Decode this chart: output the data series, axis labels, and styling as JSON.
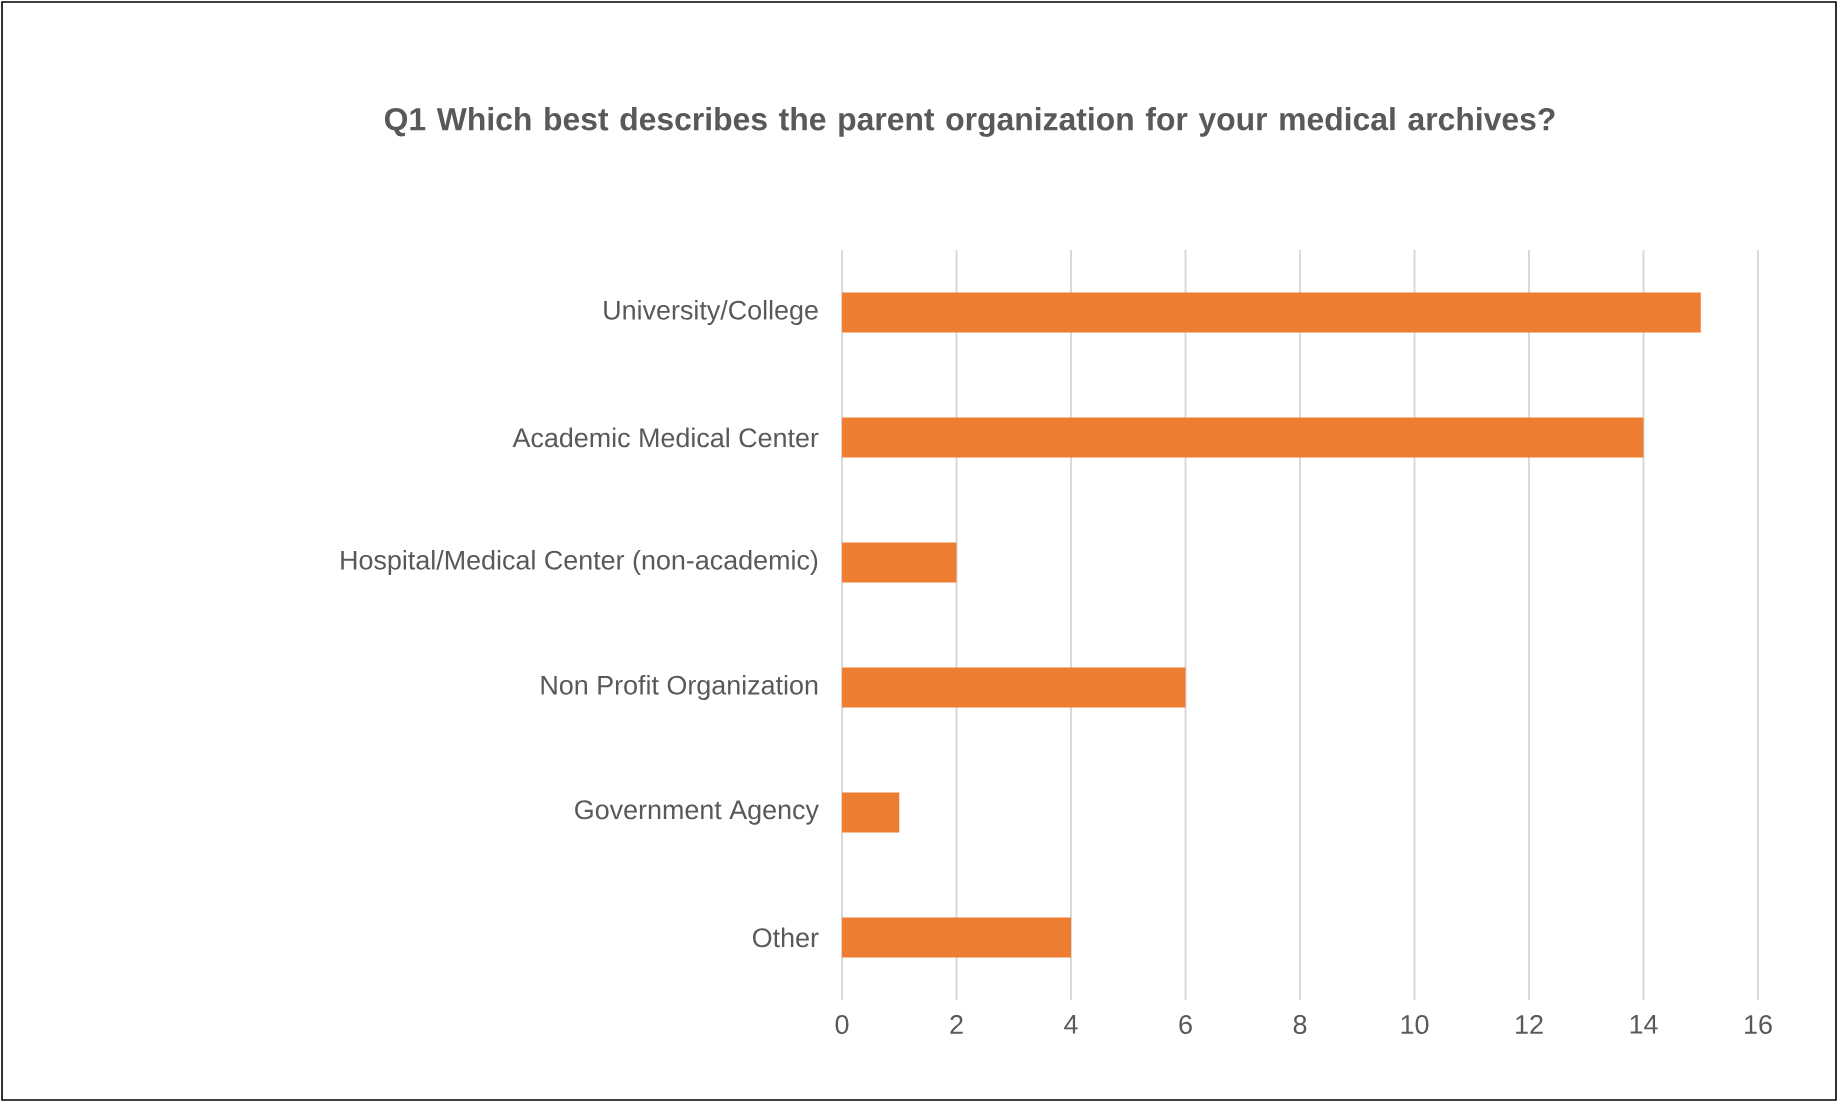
{
  "chart_data": {
    "type": "bar",
    "orientation": "horizontal",
    "title": "Q1 Which best describes the parent organization for your medical archives?",
    "categories": [
      "University/College",
      "Academic Medical Center",
      "Hospital/Medical Center (non-academic)",
      "Non Profit Organization",
      "Government Agency",
      "Other"
    ],
    "values": [
      15,
      14,
      2,
      6,
      1,
      4
    ],
    "color": "#ed7d31",
    "xlim": [
      0,
      16
    ],
    "xticks": [
      0,
      2,
      4,
      6,
      8,
      10,
      12,
      14,
      16
    ],
    "grid": "x"
  }
}
